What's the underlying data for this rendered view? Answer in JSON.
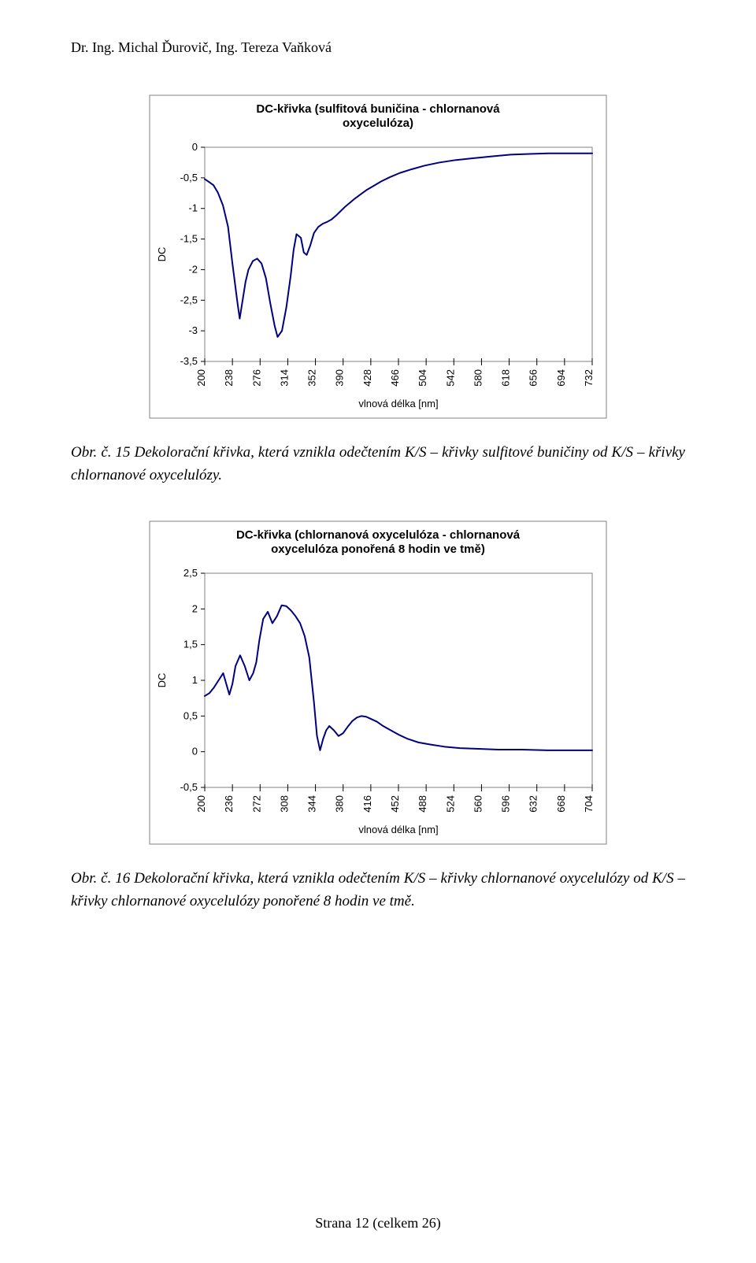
{
  "header": {
    "text": "Dr. Ing. Michal Ďurovič, Ing. Tereza Vaňková"
  },
  "chart1": {
    "type": "line",
    "title": "DC-křivka (sulfitová buničina - chlornanová\noxycelulóza)",
    "title_fontsize": 15,
    "title_weight": "bold",
    "xlabel": "vlnová délka [nm]",
    "ylabel": "DC",
    "label_fontsize": 13,
    "xlim": [
      200,
      732
    ],
    "ylim": [
      -3.5,
      0
    ],
    "xtick_labels": [
      "200",
      "238",
      "276",
      "314",
      "352",
      "390",
      "428",
      "466",
      "504",
      "542",
      "580",
      "618",
      "656",
      "694",
      "732"
    ],
    "xtick_positions": [
      200,
      238,
      276,
      314,
      352,
      390,
      428,
      466,
      504,
      542,
      580,
      618,
      656,
      694,
      732
    ],
    "ytick_positions": [
      0,
      -0.5,
      -1,
      -1.5,
      -2,
      -2.5,
      -3,
      -3.5
    ],
    "ytick_labels": [
      "0",
      "-0,5",
      "-1",
      "-1,5",
      "-2",
      "-2,5",
      "-3",
      "-3,5"
    ],
    "line_color": "#000080",
    "line_width": 2,
    "background_color": "#ffffff",
    "border_color": "#000000",
    "grid_color": "#808080",
    "tick_color": "#000000",
    "area_border_color": "#808080",
    "series_x": [
      200,
      205,
      212,
      218,
      225,
      232,
      238,
      245,
      248,
      252,
      256,
      260,
      266,
      272,
      278,
      284,
      290,
      296,
      300,
      306,
      312,
      318,
      322,
      326,
      332,
      336,
      340,
      345,
      350,
      356,
      362,
      368,
      374,
      380,
      386,
      392,
      398,
      406,
      414,
      422,
      432,
      442,
      454,
      468,
      484,
      502,
      522,
      544,
      568,
      594,
      620,
      646,
      672,
      700,
      732
    ],
    "series_y": [
      -0.52,
      -0.56,
      -0.62,
      -0.74,
      -0.95,
      -1.3,
      -1.9,
      -2.55,
      -2.8,
      -2.5,
      -2.2,
      -2.0,
      -1.86,
      -1.82,
      -1.9,
      -2.14,
      -2.55,
      -2.92,
      -3.1,
      -3.0,
      -2.62,
      -2.1,
      -1.68,
      -1.42,
      -1.48,
      -1.72,
      -1.76,
      -1.6,
      -1.4,
      -1.3,
      -1.25,
      -1.22,
      -1.18,
      -1.12,
      -1.05,
      -0.98,
      -0.92,
      -0.84,
      -0.77,
      -0.7,
      -0.63,
      -0.56,
      -0.49,
      -0.42,
      -0.36,
      -0.3,
      -0.25,
      -0.21,
      -0.18,
      -0.15,
      -0.12,
      -0.11,
      -0.1,
      -0.1,
      -0.1
    ]
  },
  "caption1": {
    "text": "Obr. č. 15 Dekolorační křivka, která vznikla odečtením K/S – křivky sulfitové buničiny od K/S – křivky chlornanové oxycelulózy."
  },
  "chart2": {
    "type": "line",
    "title": "DC-křivka (chlornanová oxycelulóza - chlornanová\noxycelulóza ponořená 8 hodin ve tmě)",
    "title_fontsize": 15,
    "title_weight": "bold",
    "xlabel": "vlnová délka [nm]",
    "ylabel": "DC",
    "label_fontsize": 13,
    "xlim": [
      200,
      704
    ],
    "ylim": [
      -0.5,
      2.5
    ],
    "xtick_labels": [
      "200",
      "236",
      "272",
      "308",
      "344",
      "380",
      "416",
      "452",
      "488",
      "524",
      "560",
      "596",
      "632",
      "668",
      "704"
    ],
    "xtick_positions": [
      200,
      236,
      272,
      308,
      344,
      380,
      416,
      452,
      488,
      524,
      560,
      596,
      632,
      668,
      704
    ],
    "ytick_positions": [
      2.5,
      2,
      1.5,
      1,
      0.5,
      0,
      -0.5
    ],
    "ytick_labels": [
      "2,5",
      "2",
      "1,5",
      "1",
      "0,5",
      "0",
      "-0,5"
    ],
    "line_color": "#000080",
    "line_width": 2,
    "background_color": "#ffffff",
    "border_color": "#000000",
    "grid_color": "#808080",
    "tick_color": "#000000",
    "area_border_color": "#808080",
    "series_x": [
      200,
      206,
      212,
      218,
      224,
      228,
      232,
      236,
      240,
      246,
      252,
      258,
      263,
      267,
      271,
      276,
      282,
      288,
      294,
      300,
      306,
      312,
      318,
      324,
      330,
      336,
      342,
      346,
      350,
      354,
      358,
      362,
      368,
      374,
      380,
      386,
      392,
      398,
      404,
      410,
      416,
      424,
      432,
      442,
      452,
      464,
      478,
      494,
      512,
      532,
      556,
      582,
      612,
      646,
      704
    ],
    "series_y": [
      0.78,
      0.82,
      0.9,
      1.0,
      1.1,
      0.95,
      0.8,
      0.95,
      1.2,
      1.35,
      1.2,
      1.0,
      1.1,
      1.25,
      1.56,
      1.86,
      1.96,
      1.8,
      1.9,
      2.05,
      2.04,
      1.98,
      1.9,
      1.8,
      1.62,
      1.32,
      0.7,
      0.22,
      0.02,
      0.18,
      0.3,
      0.36,
      0.3,
      0.22,
      0.26,
      0.35,
      0.43,
      0.48,
      0.5,
      0.49,
      0.46,
      0.42,
      0.36,
      0.3,
      0.24,
      0.18,
      0.13,
      0.1,
      0.07,
      0.05,
      0.04,
      0.03,
      0.03,
      0.02,
      0.02
    ]
  },
  "caption2": {
    "text": "Obr. č. 16 Dekolorační křivka, která vznikla odečtením K/S – křivky chlornanové oxycelulózy od K/S – křivky chlornanové oxycelulózy ponořené 8 hodin ve tmě."
  },
  "footer": {
    "text": "Strana 12 (celkem 26)"
  }
}
